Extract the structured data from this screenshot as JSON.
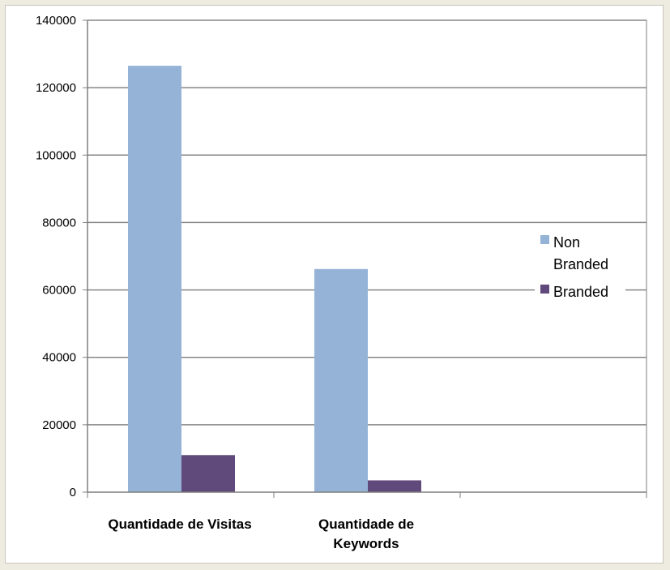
{
  "chart_data": {
    "type": "bar",
    "categories": [
      [
        "Quantidade de Visitas"
      ],
      [
        "Quantidade de",
        "Keywords"
      ],
      [
        ""
      ]
    ],
    "series": [
      {
        "name": [
          "Non",
          "Branded"
        ],
        "values": [
          126500,
          66200,
          null
        ],
        "color": "#95b3d7"
      },
      {
        "name": [
          "Branded"
        ],
        "values": [
          11000,
          3500,
          null
        ],
        "color": "#604a7b"
      }
    ],
    "ylim": [
      0,
      140000
    ],
    "yticks": [
      0,
      20000,
      40000,
      60000,
      80000,
      100000,
      120000,
      140000
    ],
    "grid": true,
    "legend": "right"
  }
}
